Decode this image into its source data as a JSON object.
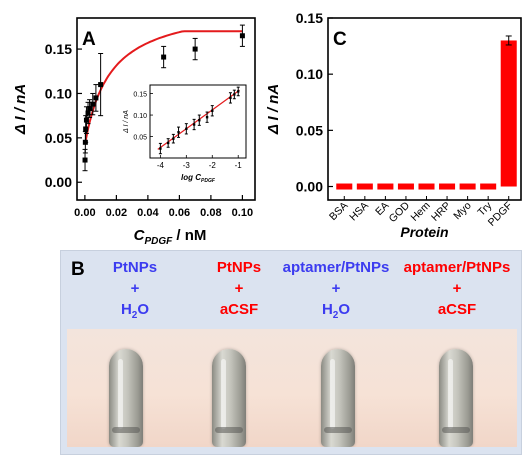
{
  "chart_data": [
    {
      "panel": "A",
      "type": "scatter",
      "xlabel_main": "C",
      "xlabel_sub": "PDGF",
      "xlabel_unit": " / nM",
      "ylabel": "Δ I / nA",
      "xlim": [
        -0.005,
        0.108
      ],
      "ylim": [
        -0.02,
        0.185
      ],
      "xticks": [
        "0.00",
        "0.02",
        "0.04",
        "0.06",
        "0.08",
        "0.10"
      ],
      "yticks": [
        "0.00",
        "0.05",
        "0.10",
        "0.15"
      ],
      "points": [
        {
          "x": 0.0001,
          "y": 0.025,
          "err": 0.012
        },
        {
          "x": 0.0003,
          "y": 0.045,
          "err": 0.012
        },
        {
          "x": 0.0005,
          "y": 0.06,
          "err": 0.015
        },
        {
          "x": 0.001,
          "y": 0.07,
          "err": 0.015
        },
        {
          "x": 0.002,
          "y": 0.078,
          "err": 0.012
        },
        {
          "x": 0.003,
          "y": 0.083,
          "err": 0.01
        },
        {
          "x": 0.005,
          "y": 0.088,
          "err": 0.012
        },
        {
          "x": 0.007,
          "y": 0.095,
          "err": 0.015
        },
        {
          "x": 0.01,
          "y": 0.11,
          "err": 0.035
        },
        {
          "x": 0.05,
          "y": 0.141,
          "err": 0.012
        },
        {
          "x": 0.07,
          "y": 0.15,
          "err": 0.012
        },
        {
          "x": 0.1,
          "y": 0.165,
          "err": 0.012
        }
      ],
      "fit_color": "#e41a1c",
      "inset": {
        "xlabel_main": "log C",
        "xlabel_sub": "PDGF",
        "ylabel": "Δ I / nA",
        "xlim": [
          -4.4,
          -0.7
        ],
        "ylim": [
          0.0,
          0.17
        ],
        "xticks": [
          "-4",
          "-3",
          "-2",
          "-1"
        ],
        "yticks": [
          "0.05",
          "0.10",
          "0.15"
        ],
        "points": [
          {
            "x": -4,
            "y": 0.022,
            "err": 0.012
          },
          {
            "x": -3.7,
            "y": 0.035,
            "err": 0.01
          },
          {
            "x": -3.5,
            "y": 0.045,
            "err": 0.01
          },
          {
            "x": -3.3,
            "y": 0.06,
            "err": 0.012
          },
          {
            "x": -3,
            "y": 0.068,
            "err": 0.012
          },
          {
            "x": -2.7,
            "y": 0.078,
            "err": 0.012
          },
          {
            "x": -2.5,
            "y": 0.088,
            "err": 0.012
          },
          {
            "x": -2.2,
            "y": 0.095,
            "err": 0.012
          },
          {
            "x": -2,
            "y": 0.11,
            "err": 0.012
          },
          {
            "x": -1.3,
            "y": 0.14,
            "err": 0.012
          },
          {
            "x": -1.15,
            "y": 0.148,
            "err": 0.01
          },
          {
            "x": -1,
            "y": 0.155,
            "err": 0.01
          }
        ]
      }
    },
    {
      "panel": "C",
      "type": "bar",
      "xlabel": "Protein",
      "ylabel": "Δ I / nA",
      "ylim": [
        -0.012,
        0.15
      ],
      "yticks": [
        "0.00",
        "0.05",
        "0.10",
        "0.15"
      ],
      "categories": [
        "BSA",
        "HSA",
        "EA",
        "GOD",
        "Hem",
        "HRP",
        "Myo",
        "Try",
        "PDGF"
      ],
      "values": [
        0.0,
        0.0,
        0.0,
        0.0,
        0.0,
        0.0,
        0.0,
        0.0,
        0.13
      ],
      "errors": [
        0,
        0,
        0,
        0,
        0,
        0,
        0,
        0,
        0.004
      ],
      "bar_color": "#ff0000"
    }
  ],
  "panelB": {
    "letter": "B",
    "columns": [
      {
        "line1": "PtNPs",
        "line2": "+",
        "line3": "H",
        "sub": "2",
        "line3b": "O",
        "color": "#3c3cf0"
      },
      {
        "line1": "PtNPs",
        "line2": "+",
        "line3": "aCSF",
        "sub": "",
        "line3b": "",
        "color": "#ff0000"
      },
      {
        "line1": "aptamer/PtNPs",
        "line2": "+",
        "line3": "H",
        "sub": "2",
        "line3b": "O",
        "color": "#3c3cf0"
      },
      {
        "line1": "aptamer/PtNPs",
        "line2": "+",
        "line3": "aCSF",
        "sub": "",
        "line3b": "",
        "color": "#ff0000"
      }
    ]
  }
}
